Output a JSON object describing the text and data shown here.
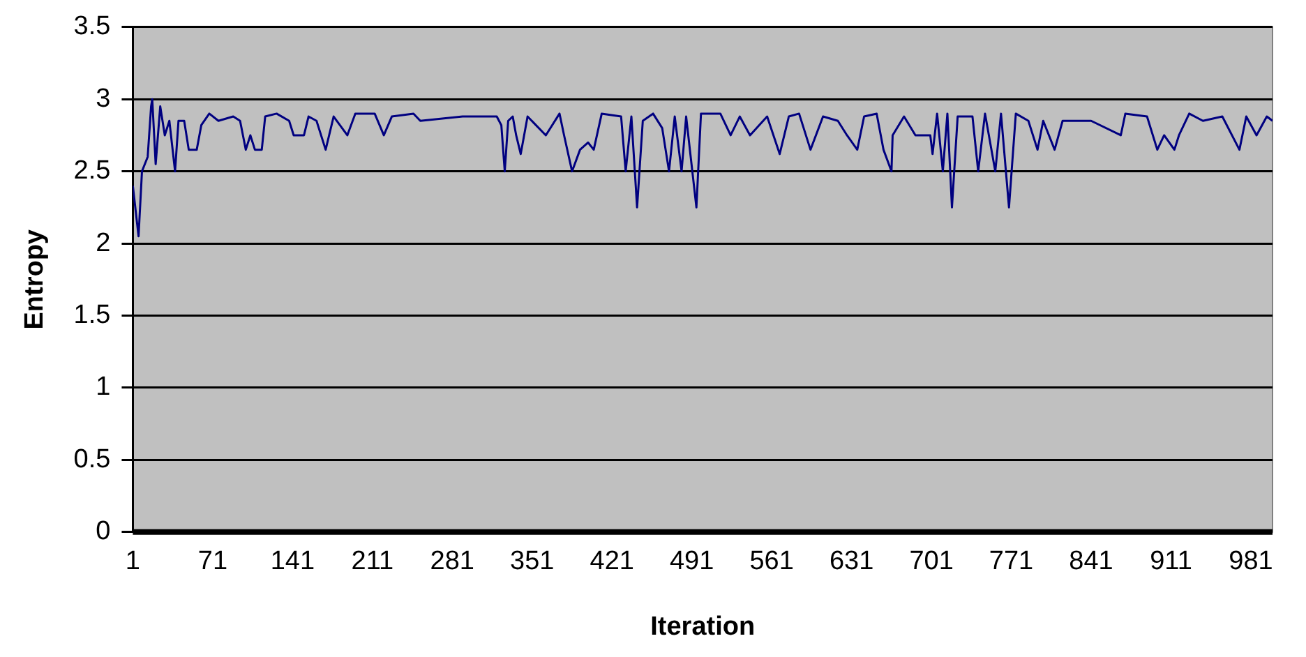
{
  "chart_data": {
    "type": "line",
    "xlabel": "Iteration",
    "ylabel": "Entropy",
    "xlim": [
      1,
      1000
    ],
    "xticks": [
      1,
      71,
      141,
      211,
      281,
      351,
      421,
      491,
      561,
      631,
      701,
      771,
      841,
      911,
      981
    ],
    "ylim": [
      0,
      3.5
    ],
    "yticks": [
      0,
      0.5,
      1,
      1.5,
      2,
      2.5,
      3,
      3.5
    ],
    "grid": "y",
    "legend": false,
    "marker": "none",
    "series": [
      {
        "color": "#000080",
        "x": [
          1,
          6,
          9,
          14,
          17,
          18,
          21,
          25,
          29,
          33,
          38,
          41,
          46,
          50,
          57,
          61,
          68,
          76,
          89,
          95,
          100,
          104,
          108,
          114,
          117,
          127,
          138,
          142,
          151,
          155,
          162,
          170,
          177,
          189,
          196,
          213,
          221,
          228,
          247,
          253,
          290,
          320,
          324,
          327,
          330,
          334,
          337,
          341,
          347,
          363,
          375,
          379,
          386,
          393,
          400,
          405,
          412,
          429,
          433,
          438,
          443,
          448,
          457,
          465,
          471,
          476,
          482,
          486,
          495,
          499,
          516,
          525,
          533,
          542,
          557,
          568,
          576,
          585,
          595,
          606,
          619,
          627,
          636,
          642,
          653,
          659,
          666,
          667,
          677,
          687,
          700,
          702,
          706,
          711,
          715,
          719,
          724,
          737,
          742,
          748,
          757,
          762,
          769,
          775,
          786,
          794,
          799,
          809,
          816,
          841,
          867,
          871,
          890,
          899,
          905,
          914,
          918,
          927,
          939,
          956,
          971,
          977,
          986,
          995,
          1000
        ],
        "values": [
          2.4,
          2.05,
          2.5,
          2.6,
          2.95,
          3.0,
          2.55,
          2.95,
          2.75,
          2.85,
          2.5,
          2.85,
          2.85,
          2.65,
          2.65,
          2.82,
          2.9,
          2.85,
          2.88,
          2.85,
          2.65,
          2.75,
          2.65,
          2.65,
          2.88,
          2.9,
          2.85,
          2.75,
          2.75,
          2.88,
          2.85,
          2.65,
          2.88,
          2.75,
          2.9,
          2.9,
          2.75,
          2.88,
          2.9,
          2.85,
          2.88,
          2.88,
          2.82,
          2.5,
          2.85,
          2.88,
          2.75,
          2.62,
          2.88,
          2.75,
          2.9,
          2.75,
          2.5,
          2.65,
          2.7,
          2.65,
          2.9,
          2.88,
          2.5,
          2.88,
          2.25,
          2.85,
          2.9,
          2.8,
          2.5,
          2.88,
          2.5,
          2.88,
          2.25,
          2.9,
          2.9,
          2.75,
          2.88,
          2.75,
          2.88,
          2.62,
          2.88,
          2.9,
          2.65,
          2.88,
          2.85,
          2.75,
          2.65,
          2.88,
          2.9,
          2.65,
          2.5,
          2.75,
          2.88,
          2.75,
          2.75,
          2.62,
          2.9,
          2.5,
          2.9,
          2.25,
          2.88,
          2.88,
          2.5,
          2.9,
          2.5,
          2.9,
          2.25,
          2.9,
          2.85,
          2.65,
          2.85,
          2.65,
          2.85,
          2.85,
          2.75,
          2.9,
          2.88,
          2.65,
          2.75,
          2.65,
          2.75,
          2.9,
          2.85,
          2.88,
          2.65,
          2.88,
          2.75,
          2.88,
          2.85
        ]
      }
    ]
  }
}
